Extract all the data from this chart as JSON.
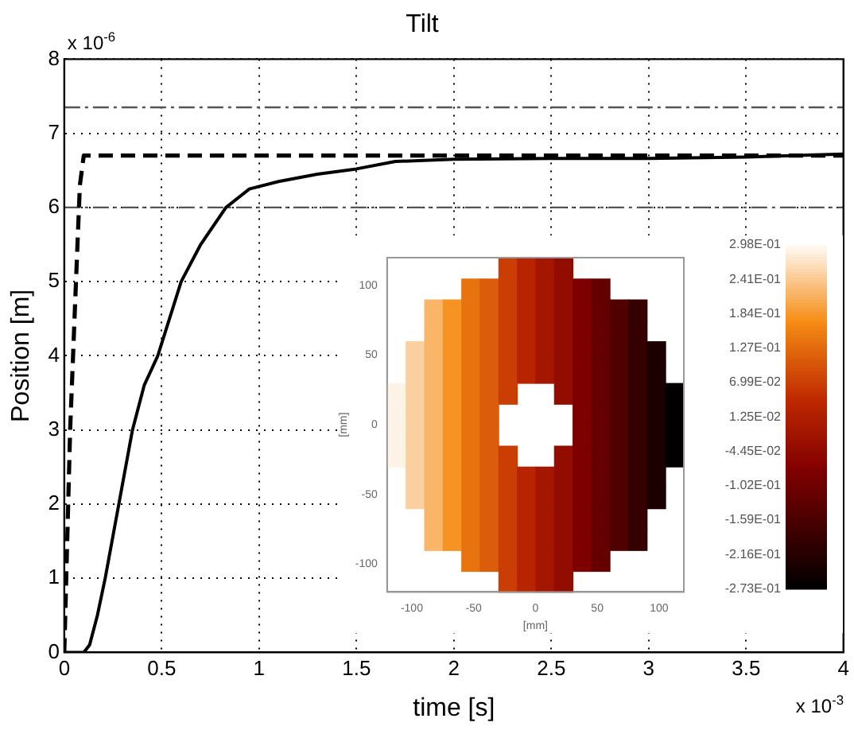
{
  "chart_data": [
    {
      "type": "line",
      "title": "Tilt",
      "xlabel": "time [s]",
      "ylabel": "Position [m]",
      "annotations": [
        "x 10$^{-6}$",
        "x 10$^{-3}$"
      ],
      "series": [
        {
          "color": "#000000",
          "line_style": "solid",
          "x": [
            0,
            0.1,
            0.13,
            0.17,
            0.21,
            0.28,
            0.35,
            0.41,
            0.48,
            0.6,
            0.7,
            0.83,
            0.95,
            1.1,
            1.3,
            1.5,
            1.7,
            2,
            2.5,
            3,
            3.5,
            4
          ],
          "values": [
            0,
            0,
            0.1,
            0.5,
            1,
            2,
            3,
            3.6,
            4,
            5,
            5.5,
            6,
            6.25,
            6.35,
            6.45,
            6.52,
            6.62,
            6.65,
            6.66,
            6.66,
            6.68,
            6.72
          ]
        },
        {
          "color": "#000000",
          "line_style": "dashed",
          "x": [
            0,
            0.01,
            0.03,
            0.06,
            0.08,
            0.1,
            4
          ],
          "values": [
            0,
            1,
            3,
            5,
            6.3,
            6.7,
            6.7
          ]
        }
      ],
      "ref_lines": [
        {
          "axis": "y",
          "value": 7.35,
          "color": "#555555",
          "line_style": "dashed"
        },
        {
          "axis": "y",
          "value": 6,
          "color": "#555555",
          "line_style": "dashed"
        }
      ],
      "xlim": [
        0,
        4
      ],
      "xticks": [
        0,
        0.5,
        1,
        1.5,
        2,
        2.5,
        3,
        3.5,
        4
      ],
      "ylim": [
        0,
        8
      ],
      "yticks": [
        0,
        1,
        2,
        3,
        4,
        5,
        6,
        7,
        8
      ],
      "grid": true,
      "legend": false
    },
    {
      "type": "heatmap",
      "xlabel": "[mm]",
      "ylabel": "[mm]",
      "x": [
        -112.5,
        -97.5,
        -82.5,
        -67.5,
        -52.5,
        -37.5,
        -22.5,
        -7.5,
        7.5,
        22.5,
        37.5,
        52.5,
        67.5,
        82.5,
        97.5,
        112.5
      ],
      "y": [
        112.5,
        97.5,
        82.5,
        67.5,
        52.5,
        37.5,
        22.5,
        7.5,
        -7.5,
        -22.5,
        -37.5,
        -52.5,
        -67.5,
        -82.5,
        -97.5,
        -112.5
      ],
      "cells": [
        [
          null,
          null,
          null,
          null,
          null,
          null,
          0.07,
          0.03,
          -0.01,
          -0.04,
          null,
          null,
          null,
          null,
          null,
          null
        ],
        [
          null,
          null,
          null,
          null,
          0.14,
          0.11,
          0.07,
          0.03,
          -0.01,
          -0.04,
          -0.08,
          -0.12,
          null,
          null,
          null,
          null
        ],
        [
          null,
          null,
          0.22,
          0.18,
          0.14,
          0.11,
          0.07,
          0.03,
          -0.01,
          -0.04,
          -0.08,
          -0.12,
          -0.15,
          -0.19,
          null,
          null
        ],
        [
          null,
          null,
          0.22,
          0.18,
          0.14,
          0.11,
          0.07,
          0.03,
          -0.01,
          -0.04,
          -0.08,
          -0.12,
          -0.15,
          -0.19,
          null,
          null
        ],
        [
          null,
          0.25,
          0.22,
          0.18,
          0.14,
          0.11,
          0.07,
          0.03,
          -0.01,
          -0.04,
          -0.08,
          -0.12,
          -0.15,
          -0.19,
          -0.23,
          null
        ],
        [
          null,
          0.25,
          0.22,
          0.18,
          0.14,
          0.11,
          0.07,
          0.03,
          -0.01,
          -0.04,
          -0.08,
          -0.12,
          -0.15,
          -0.19,
          -0.23,
          null
        ],
        [
          0.29,
          0.25,
          0.22,
          0.18,
          0.14,
          0.11,
          0.07,
          null,
          null,
          -0.04,
          -0.08,
          -0.12,
          -0.15,
          -0.19,
          -0.23,
          -0.27
        ],
        [
          0.29,
          0.25,
          0.22,
          0.18,
          0.14,
          0.11,
          null,
          null,
          null,
          null,
          -0.08,
          -0.12,
          -0.15,
          -0.19,
          -0.23,
          -0.27
        ],
        [
          0.29,
          0.25,
          0.22,
          0.18,
          0.14,
          0.11,
          null,
          null,
          null,
          null,
          -0.08,
          -0.12,
          -0.15,
          -0.19,
          -0.23,
          -0.27
        ],
        [
          0.29,
          0.25,
          0.22,
          0.18,
          0.14,
          0.11,
          0.07,
          null,
          null,
          -0.04,
          -0.08,
          -0.12,
          -0.15,
          -0.19,
          -0.23,
          -0.27
        ],
        [
          null,
          0.25,
          0.22,
          0.18,
          0.14,
          0.11,
          0.07,
          0.03,
          -0.01,
          -0.04,
          -0.08,
          -0.12,
          -0.15,
          -0.19,
          -0.23,
          null
        ],
        [
          null,
          0.25,
          0.22,
          0.18,
          0.14,
          0.11,
          0.07,
          0.03,
          -0.01,
          -0.04,
          -0.08,
          -0.12,
          -0.15,
          -0.19,
          -0.23,
          null
        ],
        [
          null,
          null,
          0.22,
          0.18,
          0.14,
          0.11,
          0.07,
          0.03,
          -0.01,
          -0.04,
          -0.08,
          -0.12,
          -0.15,
          -0.19,
          null,
          null
        ],
        [
          null,
          null,
          0.22,
          0.18,
          0.14,
          0.11,
          0.07,
          0.03,
          -0.01,
          -0.04,
          -0.08,
          -0.12,
          -0.15,
          -0.19,
          null,
          null
        ],
        [
          null,
          null,
          null,
          null,
          0.14,
          0.11,
          0.07,
          0.03,
          -0.01,
          -0.04,
          -0.08,
          -0.12,
          null,
          null,
          null,
          null
        ],
        [
          null,
          null,
          null,
          null,
          null,
          null,
          0.07,
          0.03,
          -0.01,
          -0.04,
          null,
          null,
          null,
          null,
          null,
          null
        ]
      ],
      "xlim": [
        -120,
        120
      ],
      "xticks": [
        -100,
        -50,
        0,
        50,
        100
      ],
      "ylim": [
        -120,
        120
      ],
      "yticks": [
        -100,
        -50,
        0,
        50,
        100
      ],
      "clim": [
        -0.273,
        0.298
      ],
      "cticks": [
        {
          "value": 0.298,
          "label": "2.98E-01"
        },
        {
          "value": 0.241,
          "label": "2.41E-01"
        },
        {
          "value": 0.184,
          "label": "1.84E-01"
        },
        {
          "value": 0.127,
          "label": "1.27E-01"
        },
        {
          "value": 0.0699,
          "label": "6.99E-02"
        },
        {
          "value": 0.0125,
          "label": "1.25E-02"
        },
        {
          "value": -0.0445,
          "label": "-4.45E-02"
        },
        {
          "value": -0.102,
          "label": "-1.02E-01"
        },
        {
          "value": -0.159,
          "label": "-1.59E-01"
        },
        {
          "value": -0.216,
          "label": "-2.16E-01"
        },
        {
          "value": -0.273,
          "label": "-2.73E-01"
        }
      ]
    }
  ]
}
